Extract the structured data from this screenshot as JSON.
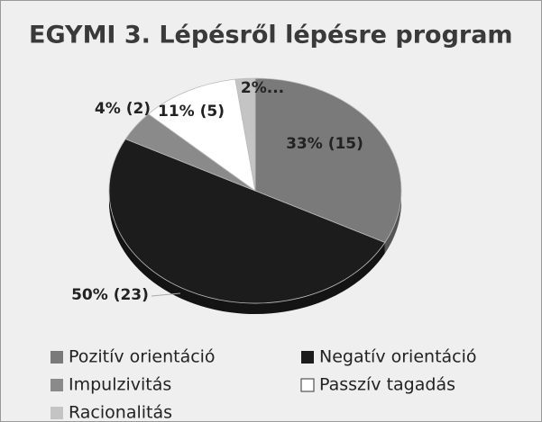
{
  "chart_data": {
    "type": "pie",
    "title": "EGYMI 3. Lépésről lépésre program",
    "categories": [
      "Pozitív orientáció",
      "Negatív orientáció",
      "Impulzivitás",
      "Passzív tagadás",
      "Racionalitás"
    ],
    "values": [
      15,
      23,
      2,
      5,
      1
    ],
    "value_labels": [
      "33% (15)",
      "50% (23)",
      "4% (2)",
      "11% (5)",
      "2%..."
    ],
    "colors": [
      "#7a7a7a",
      "#1c1c1c",
      "#8a8a8a",
      "#ffffff",
      "#c4c4c4"
    ],
    "legend": "bottom"
  }
}
